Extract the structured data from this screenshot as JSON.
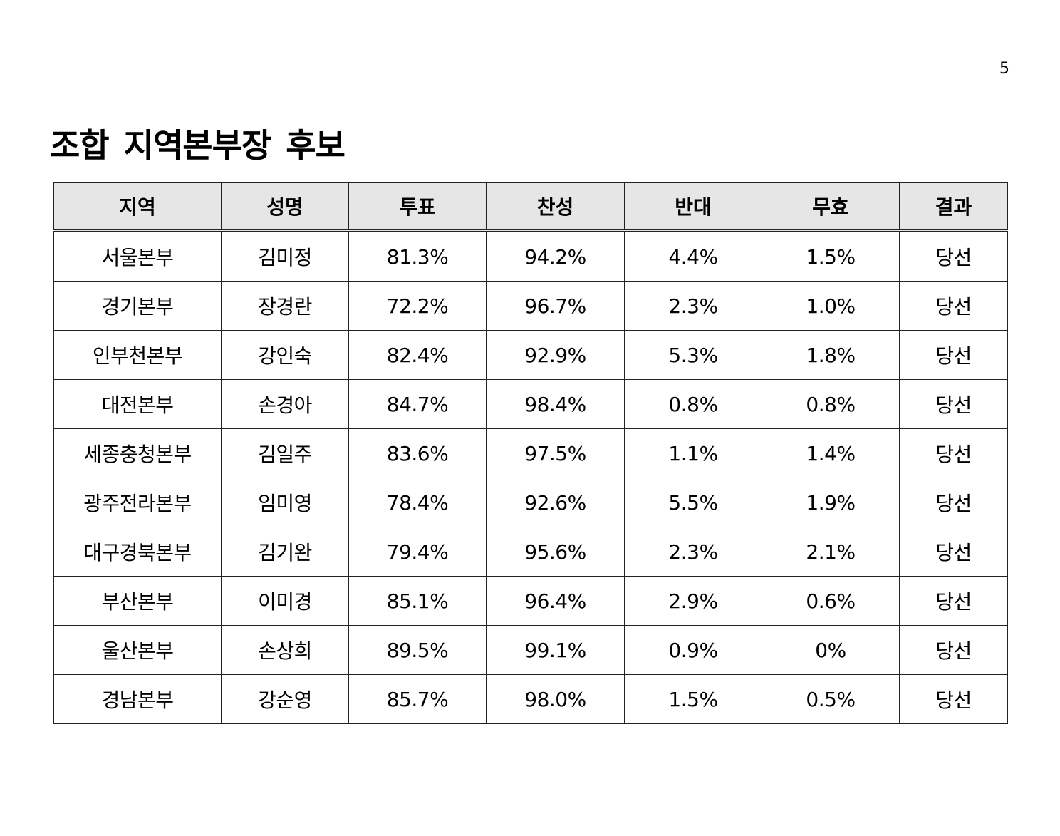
{
  "page_number": "5",
  "title": "조합 지역본부장 후보",
  "table": {
    "headers": [
      "지역",
      "성명",
      "투표",
      "찬성",
      "반대",
      "무효",
      "결과"
    ],
    "rows": [
      [
        "서울본부",
        "김미정",
        "81.3%",
        "94.2%",
        "4.4%",
        "1.5%",
        "당선"
      ],
      [
        "경기본부",
        "장경란",
        "72.2%",
        "96.7%",
        "2.3%",
        "1.0%",
        "당선"
      ],
      [
        "인부천본부",
        "강인숙",
        "82.4%",
        "92.9%",
        "5.3%",
        "1.8%",
        "당선"
      ],
      [
        "대전본부",
        "손경아",
        "84.7%",
        "98.4%",
        "0.8%",
        "0.8%",
        "당선"
      ],
      [
        "세종충청본부",
        "김일주",
        "83.6%",
        "97.5%",
        "1.1%",
        "1.4%",
        "당선"
      ],
      [
        "광주전라본부",
        "임미영",
        "78.4%",
        "92.6%",
        "5.5%",
        "1.9%",
        "당선"
      ],
      [
        "대구경북본부",
        "김기완",
        "79.4%",
        "95.6%",
        "2.3%",
        "2.1%",
        "당선"
      ],
      [
        "부산본부",
        "이미경",
        "85.1%",
        "96.4%",
        "2.9%",
        "0.6%",
        "당선"
      ],
      [
        "울산본부",
        "손상희",
        "89.5%",
        "99.1%",
        "0.9%",
        "0%",
        "당선"
      ],
      [
        "경남본부",
        "강순영",
        "85.7%",
        "98.0%",
        "1.5%",
        "0.5%",
        "당선"
      ]
    ]
  }
}
